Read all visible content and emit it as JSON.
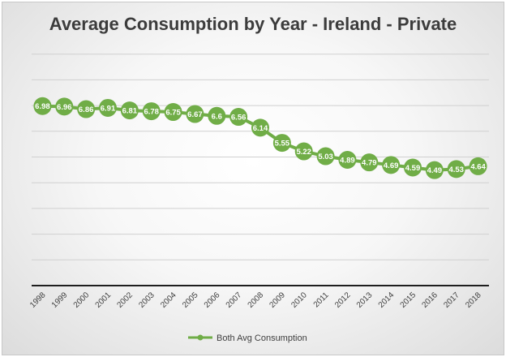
{
  "chart_data": {
    "type": "line",
    "title": "Average Consumption by Year - Ireland - Private",
    "xlabel": "",
    "ylabel": "",
    "x": [
      "1998",
      "1999",
      "2000",
      "2001",
      "2002",
      "2003",
      "2004",
      "2005",
      "2006",
      "2007",
      "2008",
      "2009",
      "2010",
      "2011",
      "2012",
      "2013",
      "2014",
      "2015",
      "2016",
      "2017",
      "2018"
    ],
    "series": [
      {
        "name": "Both Avg Consumption",
        "values": [
          6.98,
          6.96,
          6.86,
          6.91,
          6.81,
          6.78,
          6.75,
          6.67,
          6.6,
          6.56,
          6.14,
          5.55,
          5.22,
          5.03,
          4.89,
          4.79,
          4.69,
          4.59,
          4.49,
          4.53,
          4.64
        ],
        "labels": [
          "6.98",
          "6.96",
          "6.86",
          "6.91",
          "6.81",
          "6.78",
          "6.75",
          "6.67",
          "6.6",
          "6.56",
          "6.14",
          "5.55",
          "5.22",
          "5.03",
          "4.89",
          "4.79",
          "4.69",
          "4.59",
          "4.49",
          "4.53",
          "4.64"
        ]
      }
    ],
    "ylim": [
      0,
      10
    ],
    "grid": true,
    "legend": "bottom",
    "colors": {
      "line": "#70ad47",
      "marker": "#70ad47",
      "grid": "#d0d0d0",
      "axis": "#1e1e1e",
      "label_text": "#ffffff"
    }
  }
}
